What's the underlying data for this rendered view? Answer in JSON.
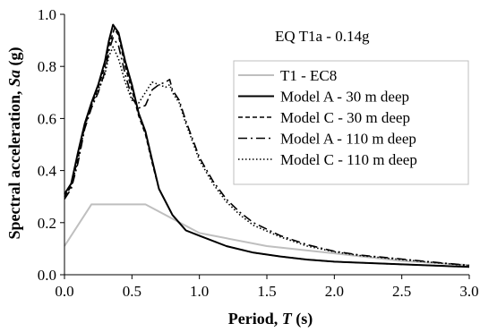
{
  "chart_data": {
    "type": "line",
    "annotation": "EQ T1a - 0.14g",
    "xlabel": {
      "prefix": "Period, ",
      "var": "T",
      "suffix": " (s)"
    },
    "ylabel": {
      "prefix": "Spectral acceleration, ",
      "var": "Sa",
      "suffix": " (g)"
    },
    "xlim": [
      0,
      3
    ],
    "ylim": [
      0,
      1
    ],
    "x_ticks": [
      "0.0",
      "0.5",
      "1.0",
      "1.5",
      "2.0",
      "2.5",
      "3.0"
    ],
    "y_ticks": [
      "0.0",
      "0.2",
      "0.4",
      "0.6",
      "0.8",
      "1.0"
    ],
    "grid": false,
    "legend_position": "top-right",
    "series": [
      {
        "name": "T1 - EC8",
        "color": "#bfbfbf",
        "dash": "solid",
        "x": [
          0,
          0.2,
          0.6,
          1.0,
          1.5,
          2.0,
          2.5,
          3.0
        ],
        "y": [
          0.11,
          0.27,
          0.27,
          0.16,
          0.11,
          0.082,
          0.053,
          0.037
        ]
      },
      {
        "name": "Model A - 30 m deep",
        "color": "#000000",
        "dash": "solid",
        "x": [
          0,
          0.05,
          0.1,
          0.15,
          0.2,
          0.25,
          0.3,
          0.33,
          0.36,
          0.4,
          0.45,
          0.5,
          0.55,
          0.6,
          0.65,
          0.7,
          0.75,
          0.8,
          0.9,
          1.0,
          1.2,
          1.4,
          1.6,
          1.8,
          2.0,
          2.2,
          2.5,
          2.8,
          3.0
        ],
        "y": [
          0.31,
          0.35,
          0.47,
          0.58,
          0.66,
          0.73,
          0.82,
          0.9,
          0.96,
          0.93,
          0.82,
          0.73,
          0.62,
          0.55,
          0.44,
          0.33,
          0.28,
          0.23,
          0.17,
          0.15,
          0.11,
          0.085,
          0.07,
          0.058,
          0.05,
          0.046,
          0.04,
          0.034,
          0.03
        ]
      },
      {
        "name": "Model C - 30 m deep",
        "color": "#000000",
        "dash": "5,3",
        "x": [
          0,
          0.05,
          0.1,
          0.15,
          0.2,
          0.25,
          0.3,
          0.33,
          0.37,
          0.4,
          0.45,
          0.5,
          0.55,
          0.6,
          0.65,
          0.7,
          0.75,
          0.8,
          0.9,
          1.0,
          1.2,
          1.4,
          1.6,
          1.8,
          2.0,
          2.2,
          2.5,
          2.8,
          3.0
        ],
        "y": [
          0.3,
          0.34,
          0.45,
          0.57,
          0.65,
          0.72,
          0.8,
          0.88,
          0.945,
          0.92,
          0.8,
          0.71,
          0.61,
          0.54,
          0.43,
          0.33,
          0.28,
          0.23,
          0.17,
          0.15,
          0.11,
          0.085,
          0.07,
          0.058,
          0.05,
          0.046,
          0.04,
          0.034,
          0.03
        ]
      },
      {
        "name": "Model A - 110 m deep",
        "color": "#000000",
        "dash": "10,4,2,4",
        "x": [
          0,
          0.05,
          0.1,
          0.15,
          0.2,
          0.25,
          0.3,
          0.33,
          0.36,
          0.4,
          0.45,
          0.5,
          0.55,
          0.6,
          0.65,
          0.7,
          0.75,
          0.78,
          0.8,
          0.85,
          0.9,
          1.0,
          1.1,
          1.2,
          1.3,
          1.4,
          1.6,
          1.8,
          2.0,
          2.2,
          2.5,
          2.8,
          3.0
        ],
        "y": [
          0.29,
          0.33,
          0.43,
          0.56,
          0.64,
          0.7,
          0.78,
          0.86,
          0.91,
          0.88,
          0.77,
          0.68,
          0.64,
          0.65,
          0.71,
          0.73,
          0.74,
          0.75,
          0.71,
          0.67,
          0.59,
          0.45,
          0.36,
          0.29,
          0.24,
          0.2,
          0.15,
          0.115,
          0.09,
          0.075,
          0.06,
          0.045,
          0.036
        ]
      },
      {
        "name": "Model C - 110 m deep",
        "color": "#000000",
        "dash": "1.5,2.5",
        "x": [
          0,
          0.05,
          0.1,
          0.15,
          0.2,
          0.25,
          0.3,
          0.33,
          0.36,
          0.4,
          0.45,
          0.5,
          0.55,
          0.6,
          0.65,
          0.7,
          0.75,
          0.78,
          0.8,
          0.85,
          0.9,
          1.0,
          1.1,
          1.2,
          1.3,
          1.4,
          1.6,
          1.8,
          2.0,
          2.2,
          2.5,
          2.8,
          3.0
        ],
        "y": [
          0.3,
          0.34,
          0.44,
          0.57,
          0.65,
          0.71,
          0.77,
          0.84,
          0.875,
          0.83,
          0.74,
          0.67,
          0.66,
          0.7,
          0.74,
          0.73,
          0.72,
          0.73,
          0.7,
          0.66,
          0.58,
          0.44,
          0.35,
          0.28,
          0.23,
          0.19,
          0.145,
          0.11,
          0.088,
          0.073,
          0.058,
          0.044,
          0.035
        ]
      }
    ]
  }
}
